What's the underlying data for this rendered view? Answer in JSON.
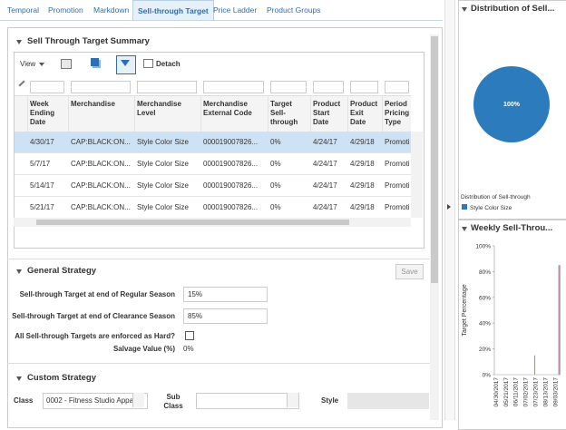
{
  "tabs": [
    "Temporal",
    "Promotion",
    "Markdown",
    "Sell-through Target",
    "Price Ladder",
    "Product Groups"
  ],
  "summary": {
    "title": "Sell Through Target Summary",
    "toolbar": {
      "view": "View",
      "detach": "Detach"
    },
    "table": {
      "columns": [
        "Week Ending Date",
        "Merchandise",
        "Merchandise Level",
        "Merchandise External Code",
        "Target Sell-through",
        "Product Start Date",
        "Product Exit Date",
        "Period Pricing Type"
      ],
      "rows": [
        [
          "4/30/17",
          "CAP:BLACK:ON...",
          "Style Color Size",
          "000019007826...",
          "0%",
          "4/24/17",
          "4/29/18",
          "Promoti"
        ],
        [
          "5/7/17",
          "CAP:BLACK:ON...",
          "Style Color Size",
          "000019007826...",
          "0%",
          "4/24/17",
          "4/29/18",
          "Promoti"
        ],
        [
          "5/14/17",
          "CAP:BLACK:ON...",
          "Style Color Size",
          "000019007826...",
          "0%",
          "4/24/17",
          "4/29/18",
          "Promoti"
        ],
        [
          "5/21/17",
          "CAP:BLACK:ON...",
          "Style Color Size",
          "000019007826...",
          "0%",
          "4/24/17",
          "4/29/18",
          "Promoti"
        ]
      ]
    }
  },
  "general_strategy": {
    "title": "General Strategy",
    "save": "Save",
    "regular_label": "Sell-through Target at end of Regular Season",
    "regular_value": "15%",
    "clearance_label": "Sell-through Target at end of Clearance Season",
    "clearance_value": "85%",
    "hard_label": "All Sell-through Targets are enforced as Hard?",
    "salvage_label": "Salvage Value (%)",
    "salvage_value": "0%"
  },
  "custom_strategy": {
    "title": "Custom Strategy",
    "class_label": "Class",
    "class_value": "0002 - Fitness Studio Appa",
    "sub_class_label": "Sub Class",
    "style_label": "Style"
  },
  "side_panel": {
    "distribution": {
      "title": "Distribution of Sell...",
      "chart_data": {
        "type": "pie",
        "categories": [
          "Style Color Size"
        ],
        "values": [
          100
        ],
        "value_labels": [
          "100%"
        ],
        "colors": [
          "#2b7bbd"
        ],
        "legend_title": "Distribution of Sell-through"
      }
    },
    "weekly": {
      "title": "Weekly Sell-Throu...",
      "chart_data": {
        "type": "bar",
        "y_label": "Target Percentage",
        "categories": [
          "04/30/2017",
          null,
          null,
          "05/21/2017",
          null,
          null,
          "06/11/2017",
          null,
          null,
          "07/02/2017",
          null,
          null,
          "07/23/2017",
          null,
          null,
          "08/13/2017",
          null,
          null,
          "09/03/2017",
          null
        ],
        "series": [
          {
            "color": "#8db43a",
            "values": [
              null,
              null,
              null,
              null,
              null,
              null,
              null,
              null,
              null,
              null,
              null,
              null,
              15,
              null,
              null,
              null,
              null,
              null,
              null,
              null
            ]
          },
          {
            "color": "#9a6cc4",
            "values": [
              null,
              null,
              null,
              null,
              null,
              null,
              null,
              null,
              null,
              null,
              null,
              null,
              null,
              null,
              null,
              null,
              null,
              null,
              null,
              85
            ]
          },
          {
            "color": "#e89c3a",
            "values": [
              null,
              null,
              null,
              null,
              null,
              null,
              null,
              null,
              null,
              null,
              null,
              null,
              null,
              null,
              null,
              null,
              null,
              null,
              null,
              85
            ]
          }
        ],
        "ylim": [
          0,
          100
        ],
        "yticks": [
          {
            "value": 0,
            "label": "0%"
          },
          {
            "value": 20,
            "label": "20%"
          },
          {
            "value": 40,
            "label": "40%"
          },
          {
            "value": 60,
            "label": "60%"
          },
          {
            "value": 80,
            "label": "80%"
          },
          {
            "value": 100,
            "label": "100%"
          }
        ],
        "grid": false
      }
    }
  }
}
